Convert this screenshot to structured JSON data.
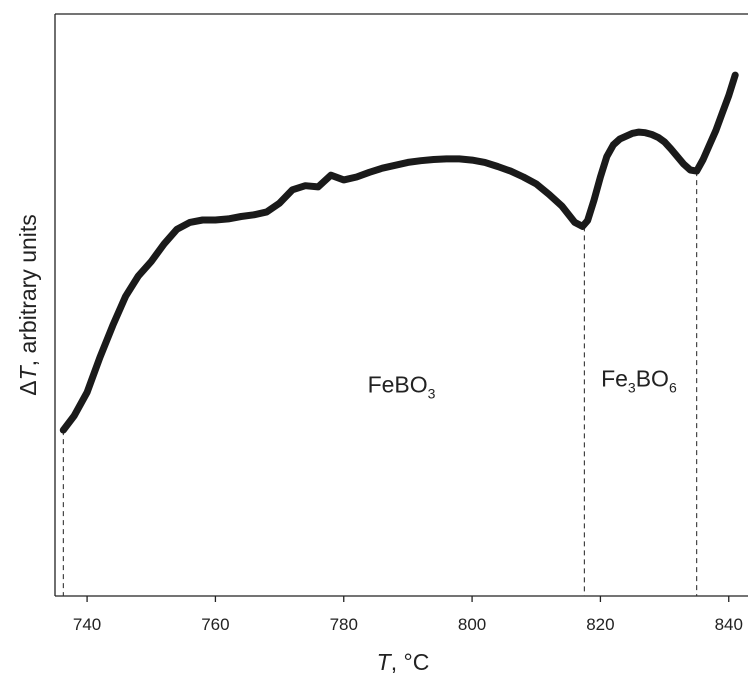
{
  "chart_data": {
    "type": "line",
    "xlabel": {
      "italic": "T",
      "rest": ", °C"
    },
    "ylabel": {
      "prefix": "Δ",
      "italic": "T",
      "rest": ", arbitrary units"
    },
    "xlim": [
      735,
      843
    ],
    "ylim": [
      0,
      100
    ],
    "y_ticks_shown": false,
    "grid": false,
    "x_ticks": [
      740,
      760,
      780,
      800,
      820,
      840
    ],
    "x_tick_labels": [
      "740",
      "760",
      "780",
      "800",
      "820",
      "840"
    ],
    "series": [
      {
        "x": [
          736.3,
          738,
          740,
          742,
          744,
          746,
          748,
          750,
          752,
          754,
          756,
          758,
          760,
          762,
          764,
          766,
          768,
          770,
          772,
          774,
          776,
          778,
          780,
          782,
          784,
          786,
          788,
          790,
          792,
          794,
          796,
          798,
          800,
          802,
          804,
          806,
          808,
          810,
          812,
          814,
          816,
          817.2,
          818,
          819,
          820,
          821,
          822,
          823,
          824,
          825,
          826,
          827,
          828,
          829,
          830,
          831,
          832,
          833,
          834,
          835,
          836,
          837,
          838,
          839,
          840,
          841
        ],
        "y": [
          28.5,
          31,
          35,
          41,
          46.5,
          51.5,
          55,
          57.5,
          60.5,
          63,
          64.2,
          64.6,
          64.6,
          64.8,
          65.2,
          65.5,
          66,
          67.5,
          69.8,
          70.5,
          70.3,
          72.3,
          71.5,
          72,
          72.8,
          73.5,
          74,
          74.5,
          74.8,
          75,
          75.1,
          75.1,
          74.9,
          74.5,
          73.8,
          73,
          72,
          70.8,
          69,
          67,
          64.2,
          63.5,
          64.5,
          68,
          72,
          75.5,
          77.5,
          78.5,
          79,
          79.5,
          79.7,
          79.6,
          79.3,
          78.8,
          78,
          76.8,
          75.5,
          74.2,
          73.2,
          73,
          75,
          77.5,
          80,
          83,
          86,
          89.5
        ],
        "color": "#1a1a1a"
      }
    ],
    "reference_lines": [
      {
        "x": 736.3,
        "y_top": 28.5
      },
      {
        "x": 817.5,
        "y_top": 63.5
      },
      {
        "x": 835,
        "y_top": 73
      }
    ],
    "annotations": [
      {
        "x": 789,
        "y": 35,
        "base": "FeBO",
        "sub": "3"
      },
      {
        "x": 826,
        "y": 36,
        "base": "Fe",
        "sub1": "3",
        "mid": "BO",
        "sub2": "6"
      }
    ]
  }
}
